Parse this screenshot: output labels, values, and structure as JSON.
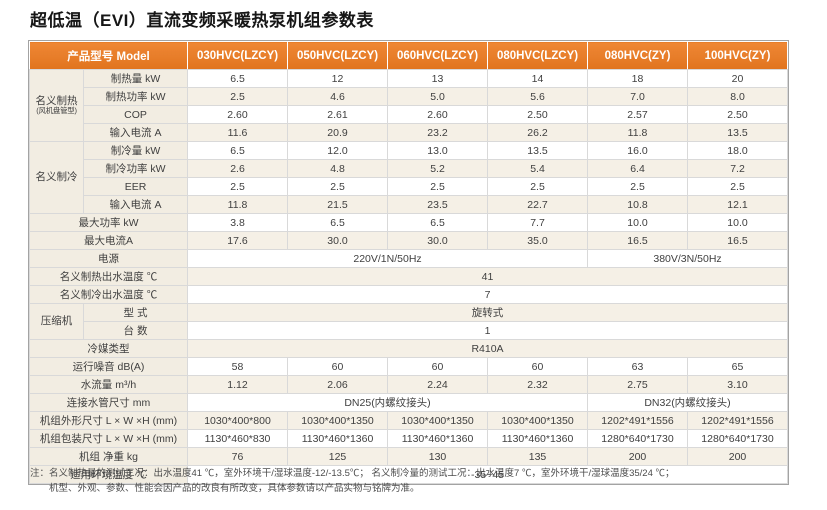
{
  "title": "超低温（EVI）直流变频采暖热泵机组参数表",
  "colors": {
    "header_bg": "#ED7A1F",
    "header_text": "#FFFFFF",
    "label_bg": "#F2EDE2",
    "row_alt_bg": "#F5F0E6",
    "border": "#D9D9D9",
    "outer_border": "#A3A3A3",
    "text": "#3F3F3F"
  },
  "table": {
    "header": {
      "model_label": "产品型号 Model",
      "models": [
        "030HVC(LZCY)",
        "050HVC(LZCY)",
        "060HVC(LZCY)",
        "080HVC(LZCY)",
        "080HVC(ZY)",
        "100HVC(ZY)"
      ]
    },
    "rows": [
      {
        "group": {
          "label": "名义制热",
          "sub": "(风机盘管型)",
          "span": 4
        },
        "label": "制热量  kW",
        "values": [
          "6.5",
          "12",
          "13",
          "14",
          "18",
          "20"
        ]
      },
      {
        "label": "制热功率 kW",
        "values": [
          "2.5",
          "4.6",
          "5.0",
          "5.6",
          "7.0",
          "8.0"
        ]
      },
      {
        "label": "COP",
        "values": [
          "2.60",
          "2.61",
          "2.60",
          "2.50",
          "2.57",
          "2.50"
        ]
      },
      {
        "label": "输入电流  A",
        "values": [
          "11.6",
          "20.9",
          "23.2",
          "26.2",
          "11.8",
          "13.5"
        ]
      },
      {
        "group": {
          "label": "名义制冷",
          "span": 4
        },
        "label": "制冷量  kW",
        "values": [
          "6.5",
          "12.0",
          "13.0",
          "13.5",
          "16.0",
          "18.0"
        ]
      },
      {
        "label": "制冷功率 kW",
        "values": [
          "2.6",
          "4.8",
          "5.2",
          "5.4",
          "6.4",
          "7.2"
        ]
      },
      {
        "label": "EER",
        "values": [
          "2.5",
          "2.5",
          "2.5",
          "2.5",
          "2.5",
          "2.5"
        ]
      },
      {
        "label": "输入电流  A",
        "values": [
          "11.8",
          "21.5",
          "23.5",
          "22.7",
          "10.8",
          "12.1"
        ]
      },
      {
        "label": "最大功率 kW",
        "values": [
          "3.8",
          "6.5",
          "6.5",
          "7.7",
          "10.0",
          "10.0"
        ]
      },
      {
        "label": "最大电流A",
        "values": [
          "17.6",
          "30.0",
          "30.0",
          "35.0",
          "16.5",
          "16.5"
        ]
      },
      {
        "label": "电源",
        "values": [
          {
            "text": "220V/1N/50Hz",
            "span": 4
          },
          {
            "text": "380V/3N/50Hz",
            "span": 2
          }
        ]
      },
      {
        "label": "名义制热出水温度 ℃",
        "values": [
          {
            "text": "41",
            "span": 6
          }
        ]
      },
      {
        "label": "名义制冷出水温度 ℃",
        "values": [
          {
            "text": "7",
            "span": 6
          }
        ]
      },
      {
        "group": {
          "label": "压缩机",
          "span": 2
        },
        "label": "型 式",
        "values": [
          {
            "text": "旋转式",
            "span": 6
          }
        ]
      },
      {
        "label": "台 数",
        "values": [
          {
            "text": "1",
            "span": 6
          }
        ]
      },
      {
        "label": "冷媒类型",
        "values": [
          {
            "text": "R410A",
            "span": 6
          }
        ]
      },
      {
        "label": "运行噪音  dB(A)",
        "values": [
          "58",
          "60",
          "60",
          "60",
          "63",
          "65"
        ]
      },
      {
        "label": "水流量  m³/h",
        "values": [
          "1.12",
          "2.06",
          "2.24",
          "2.32",
          "2.75",
          "3.10"
        ]
      },
      {
        "label": "连接水管尺寸 mm",
        "values": [
          {
            "text": "DN25(内螺纹接头)",
            "span": 4
          },
          {
            "text": "DN32(内螺纹接头)",
            "span": 2
          }
        ]
      },
      {
        "label": "机组外形尺寸  L × W ×H (mm)",
        "values": [
          "1030*400*800",
          "1030*400*1350",
          "1030*400*1350",
          "1030*400*1350",
          "1202*491*1556",
          "1202*491*1556"
        ]
      },
      {
        "label": "机组包装尺寸  L × W ×H (mm)",
        "values": [
          "1130*460*830",
          "1130*460*1360",
          "1130*460*1360",
          "1130*460*1360",
          "1280*640*1730",
          "1280*640*1730"
        ]
      },
      {
        "label": "机组 净重  kg",
        "values": [
          "76",
          "125",
          "130",
          "135",
          "200",
          "200"
        ]
      },
      {
        "label": "适用环境温度 ℃",
        "values": [
          {
            "text": "-35~45",
            "span": 6
          }
        ]
      }
    ]
  },
  "footnote": {
    "label": "注：",
    "line1": "名义制热量的测试工况：出水温度41 ℃，室外环境干/湿球温度-12/-13.5℃；  名义制冷量的测试工况：出水温度7 ℃，室外环境干/湿球温度35/24 ℃；",
    "line2": "机型、外观、参数、性能会因产品的改良有所改变，具体参数请以产品实物与铭牌为准。"
  }
}
